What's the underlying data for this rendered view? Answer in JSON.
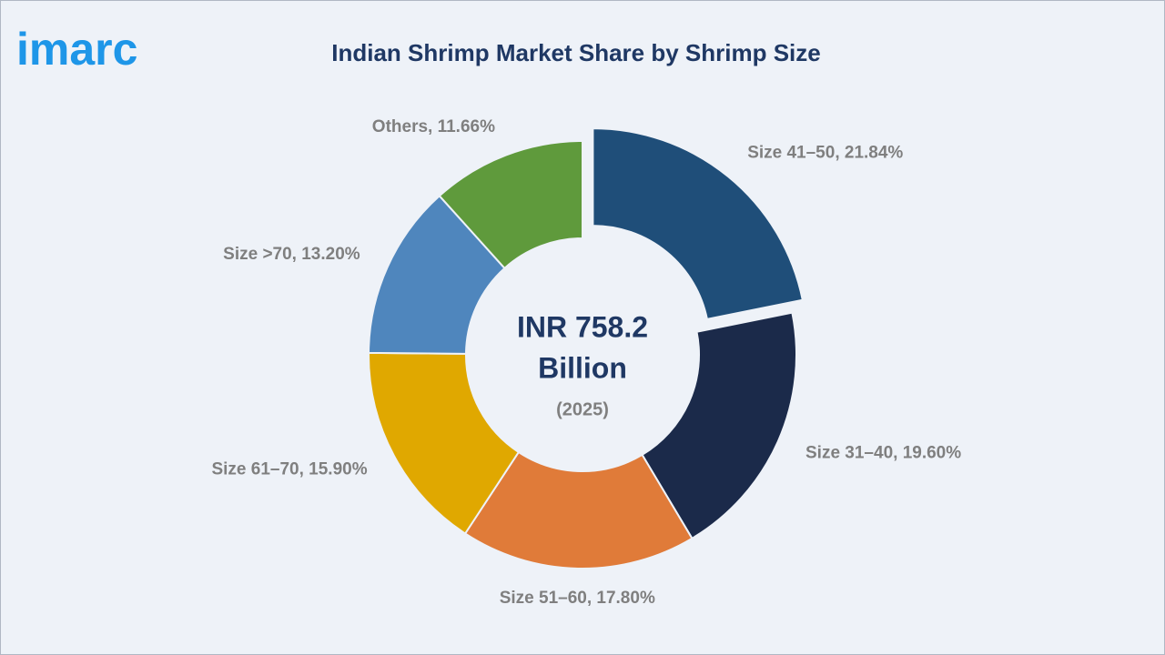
{
  "logo": "imarc",
  "chart_data": {
    "type": "pie",
    "title": "Indian Shrimp Market Share by Shrimp Size",
    "values": [
      21.84,
      19.6,
      17.8,
      15.9,
      13.2,
      11.66
    ],
    "value_labels": [
      "Size 41–50, 21.84%",
      "Size 31–40, 19.60%",
      "Size 51–60, 17.80%",
      "Size 61–70, 15.90%",
      "Size >70, 13.20%",
      "Others, 11.66%"
    ],
    "colors": [
      "#1f4e79",
      "#1b2a4a",
      "#e07b39",
      "#e0a800",
      "#4f86bd",
      "#5f9a3c"
    ],
    "center_label": [
      "INR 758.2",
      "Billion"
    ],
    "center_sublabel": "(2025)"
  }
}
